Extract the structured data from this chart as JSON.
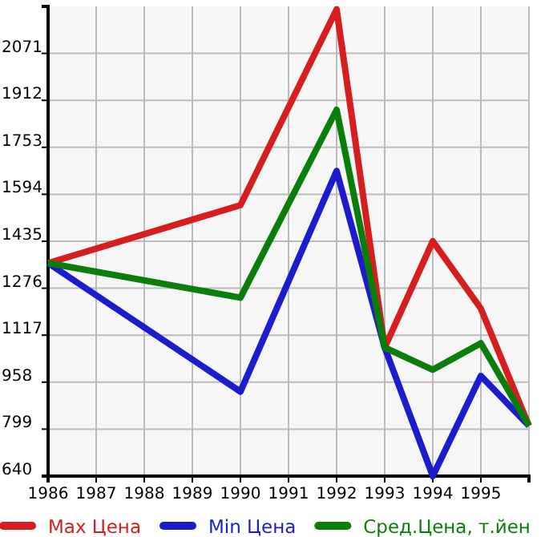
{
  "chart_data": {
    "type": "line",
    "x": [
      1986,
      1990,
      1992,
      1993,
      1994,
      1995,
      1996
    ],
    "series": [
      {
        "name": "Max Цена",
        "color": "#d61e1e",
        "values": [
          1361,
          1557,
          2220,
          1075,
          1435,
          1207,
          810
        ]
      },
      {
        "name": "Min Цена",
        "color": "#1c1ccc",
        "values": [
          1361,
          926,
          1673,
          1075,
          640,
          979,
          810
        ]
      },
      {
        "name": "Сред.Цена, т.йен",
        "color": "#0a7d0a",
        "values": [
          1361,
          1244,
          1880,
          1075,
          1000,
          1090,
          810
        ]
      }
    ],
    "xlim": [
      1986,
      1996
    ],
    "xticks": [
      1986,
      1987,
      1988,
      1989,
      1990,
      1991,
      1992,
      1993,
      1994,
      1995,
      {
        "value": 1996,
        "label": null
      }
    ],
    "ylim": [
      640,
      2230
    ],
    "yticks": [
      640,
      799,
      958,
      1117,
      1276,
      1435,
      1594,
      1753,
      1912,
      2071
    ],
    "grid": true,
    "legend": "bottom",
    "marker": "none",
    "line_style": "solid"
  }
}
